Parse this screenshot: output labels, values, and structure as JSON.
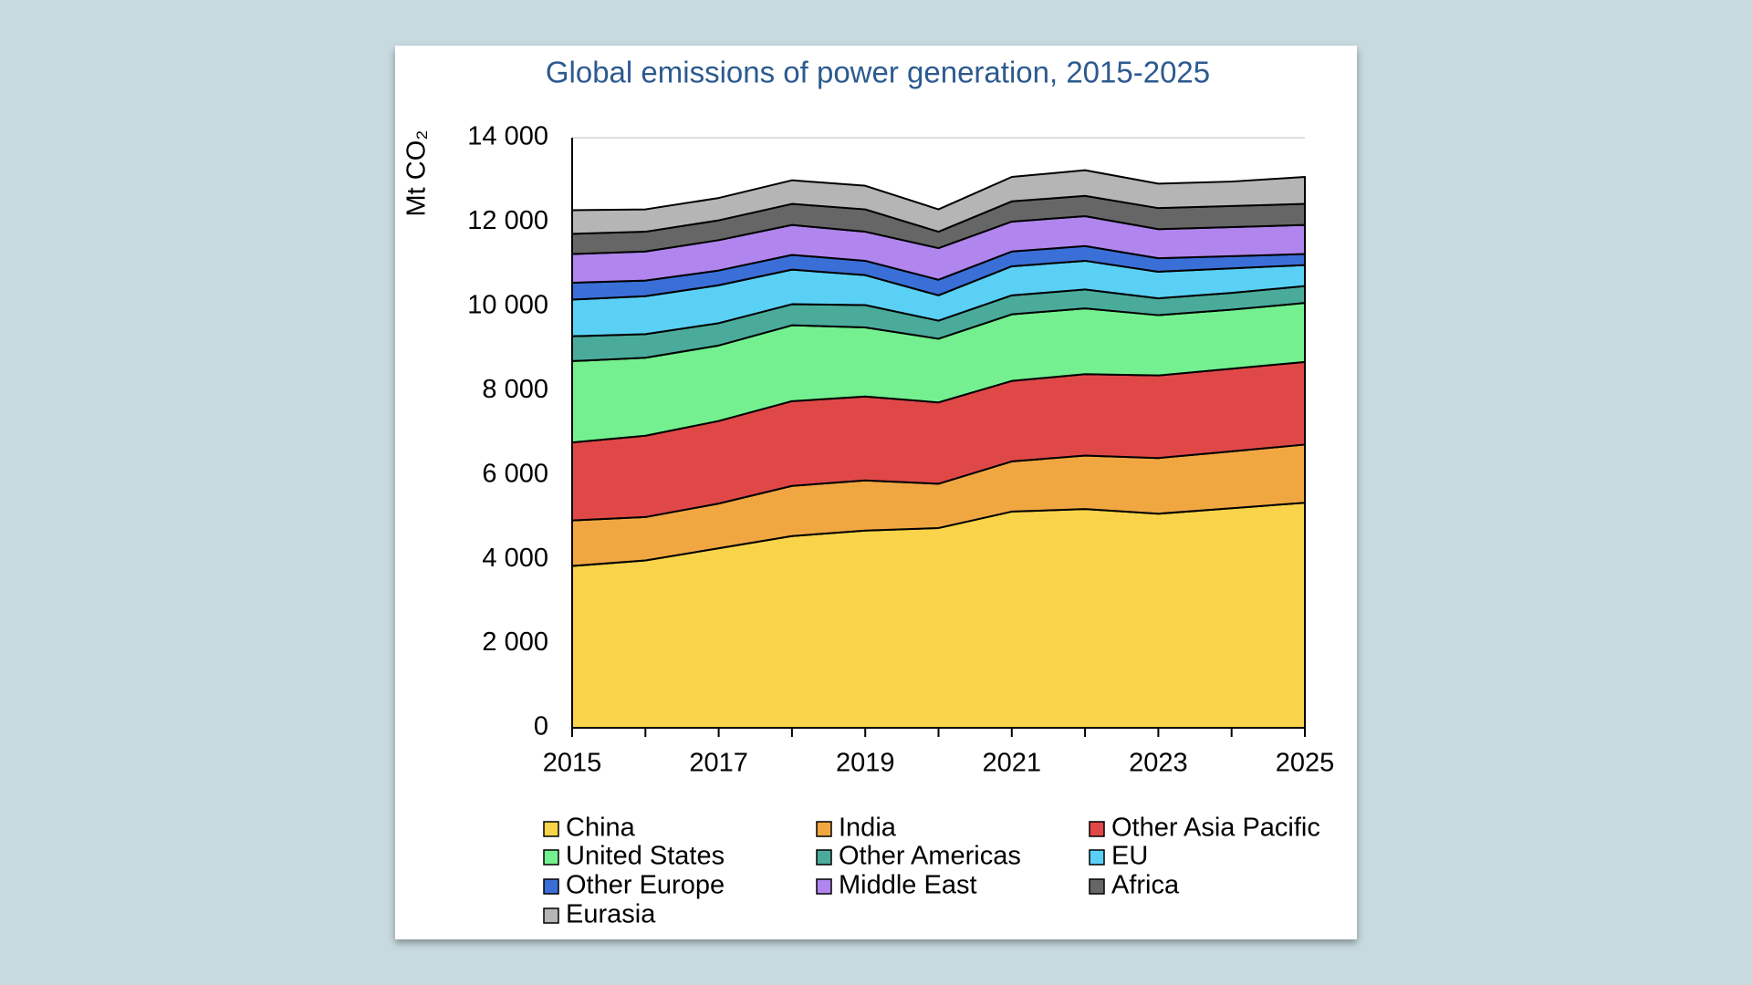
{
  "chart_data": {
    "type": "stacked_area",
    "title": "Global emissions of power generation, 2015-2025",
    "y_label": "Mt CO₂",
    "x": [
      2015,
      2016,
      2017,
      2018,
      2019,
      2020,
      2021,
      2022,
      2023,
      2024,
      2025
    ],
    "xlim": [
      2015,
      2025
    ],
    "xticks": [
      2015,
      2017,
      2019,
      2021,
      2023,
      2025
    ],
    "ylim": [
      0,
      14000
    ],
    "yticks": [
      0,
      {
        "value": 2000,
        "label": "2 000"
      },
      {
        "value": 4000,
        "label": "4 000"
      },
      {
        "value": 6000,
        "label": "6 000"
      },
      {
        "value": 8000,
        "label": "8 000"
      },
      {
        "value": 10000,
        "label": "10 000"
      },
      {
        "value": 12000,
        "label": "12 000"
      },
      {
        "value": 14000,
        "label": "14 000"
      }
    ],
    "grid": true,
    "series": [
      {
        "name": "China",
        "color": "#f9d44a",
        "values": [
          3840,
          3970,
          4260,
          4550,
          4680,
          4740,
          5130,
          5190,
          5080,
          5210,
          5340
        ]
      },
      {
        "name": "India",
        "color": "#f0a742",
        "values": [
          1080,
          1030,
          1060,
          1190,
          1190,
          1050,
          1190,
          1270,
          1320,
          1350,
          1380
        ]
      },
      {
        "name": "Other Asia Pacific",
        "color": "#e04848",
        "values": [
          1850,
          1930,
          1960,
          2010,
          1990,
          1930,
          1910,
          1930,
          1960,
          1960,
          1960
        ]
      },
      {
        "name": "United States",
        "color": "#74f090",
        "values": [
          1930,
          1850,
          1790,
          1800,
          1640,
          1510,
          1580,
          1560,
          1430,
          1400,
          1400
        ]
      },
      {
        "name": "Other Americas",
        "color": "#4aab9b",
        "values": [
          590,
          560,
          530,
          500,
          530,
          430,
          450,
          450,
          400,
          400,
          400
        ]
      },
      {
        "name": "EU",
        "color": "#5bd0f5",
        "values": [
          870,
          900,
          900,
          820,
          710,
          600,
          690,
          680,
          630,
          580,
          500
        ]
      },
      {
        "name": "Other Europe",
        "color": "#3a6fd8",
        "values": [
          400,
          370,
          350,
          350,
          340,
          370,
          350,
          350,
          320,
          290,
          260
        ]
      },
      {
        "name": "Middle East",
        "color": "#b085ee",
        "values": [
          680,
          690,
          720,
          710,
          690,
          750,
          710,
          710,
          690,
          690,
          690
        ]
      },
      {
        "name": "Africa",
        "color": "#666666",
        "values": [
          480,
          470,
          470,
          500,
          530,
          390,
          480,
          480,
          500,
          500,
          500
        ]
      },
      {
        "name": "Eurasia",
        "color": "#b5b5b5",
        "values": [
          560,
          530,
          530,
          560,
          560,
          530,
          580,
          610,
          580,
          580,
          640
        ]
      }
    ]
  }
}
